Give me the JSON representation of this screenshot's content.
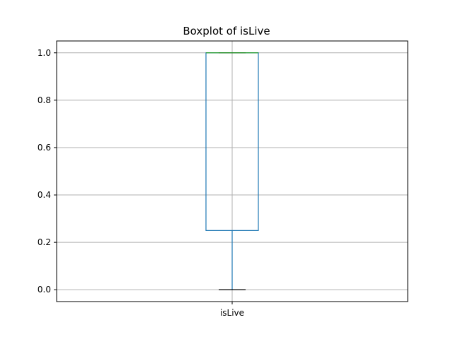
{
  "chart_data": {
    "type": "box",
    "title": "Boxplot of isLive",
    "xlabel": "",
    "ylabel": "",
    "categories": [
      "isLive"
    ],
    "boxes": [
      {
        "name": "isLive",
        "whisker_low": 0.0,
        "q1": 0.25,
        "median": 1.0,
        "q3": 1.0,
        "whisker_high": 1.0
      }
    ],
    "ylim": [
      -0.05,
      1.05
    ],
    "yticks": [
      0.0,
      0.2,
      0.4,
      0.6,
      0.8,
      1.0
    ],
    "ytick_labels": [
      "0.0",
      "0.2",
      "0.4",
      "0.6",
      "0.8",
      "1.0"
    ],
    "grid": true,
    "colors": {
      "box": "#1f77b4",
      "median": "#2ca02c",
      "caps": "#000000",
      "grid": "#b0b0b0",
      "axes": "#000000"
    }
  }
}
